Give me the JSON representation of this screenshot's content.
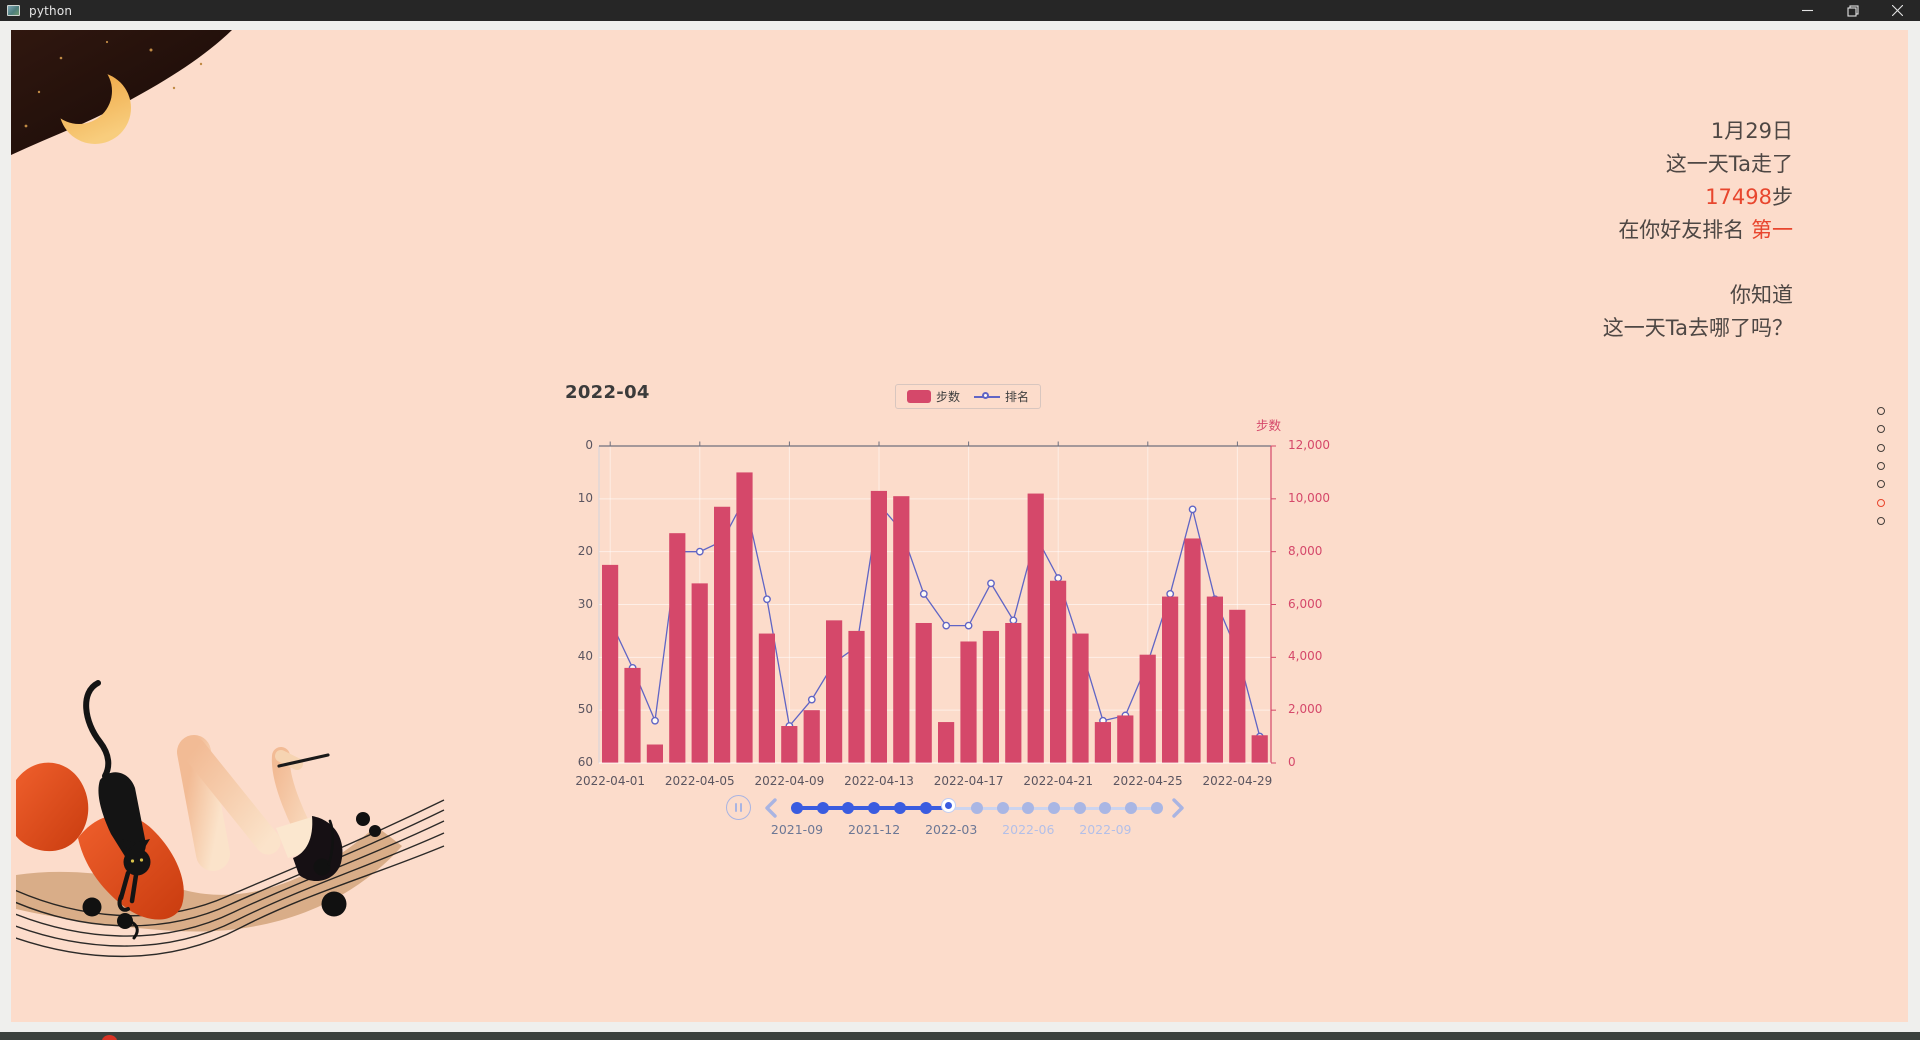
{
  "window": {
    "title": "python"
  },
  "story": {
    "accent_color": "#e8462e",
    "lines": [
      {
        "parts": [
          {
            "text": "1月29日"
          }
        ]
      },
      {
        "parts": [
          {
            "text": "这一天Ta走了"
          }
        ]
      },
      {
        "parts": [
          {
            "text": "17498",
            "accent": true
          },
          {
            "text": "步"
          }
        ]
      },
      {
        "parts": [
          {
            "text": "在你好友排名 "
          },
          {
            "text": "第一",
            "accent": true
          }
        ]
      },
      {
        "gap": true
      },
      {
        "parts": [
          {
            "text": "你知道"
          }
        ]
      },
      {
        "parts": [
          {
            "text": "这一天Ta去哪了吗？"
          }
        ]
      }
    ]
  },
  "chart_data": {
    "type": "bar",
    "title": "2022-04",
    "legend": [
      {
        "label": "步数",
        "type": "bar",
        "color": "#d5486a"
      },
      {
        "label": "排名",
        "type": "line",
        "color": "#6065c5"
      }
    ],
    "x": [
      "2022-04-01",
      "2022-04-02",
      "2022-04-03",
      "2022-04-04",
      "2022-04-05",
      "2022-04-06",
      "2022-04-07",
      "2022-04-08",
      "2022-04-09",
      "2022-04-10",
      "2022-04-11",
      "2022-04-12",
      "2022-04-13",
      "2022-04-14",
      "2022-04-15",
      "2022-04-16",
      "2022-04-17",
      "2022-04-18",
      "2022-04-19",
      "2022-04-20",
      "2022-04-21",
      "2022-04-22",
      "2022-04-23",
      "2022-04-24",
      "2022-04-25",
      "2022-04-26",
      "2022-04-27",
      "2022-04-28",
      "2022-04-29",
      "2022-04-30"
    ],
    "x_tick_labels": [
      "2022-04-01",
      "2022-04-05",
      "2022-04-09",
      "2022-04-13",
      "2022-04-17",
      "2022-04-21",
      "2022-04-25",
      "2022-04-29"
    ],
    "series": [
      {
        "name": "步数",
        "type": "bar",
        "axis": "right",
        "values": [
          7500,
          3600,
          700,
          8700,
          6800,
          9700,
          11000,
          4900,
          1400,
          2000,
          5400,
          5000,
          10300,
          10100,
          5300,
          1550,
          4600,
          5000,
          5300,
          10200,
          6900,
          4900,
          1550,
          1800,
          4100,
          6300,
          8500,
          6300,
          5800,
          1050
        ]
      },
      {
        "name": "排名",
        "type": "line",
        "axis": "left",
        "values": [
          33,
          42,
          52,
          20,
          20,
          18,
          10,
          29,
          53,
          48,
          41,
          38,
          11,
          16,
          28,
          34,
          34,
          26,
          33,
          17,
          25,
          38,
          52,
          51,
          41,
          28,
          12,
          29,
          39,
          55
        ]
      }
    ],
    "left_axis": {
      "ticks": [
        "0",
        "10",
        "20",
        "30",
        "40",
        "50",
        "60"
      ],
      "min": 0,
      "max": 60,
      "inverted": true
    },
    "right_axis": {
      "name": "步数",
      "ticks": [
        "12,000",
        "10,000",
        "8,000",
        "6,000",
        "4,000",
        "2,000",
        "0"
      ],
      "min": 0,
      "max": 12000
    },
    "grid": true,
    "legend_position": "top-center"
  },
  "timeline": {
    "current_index": 6,
    "items": [
      {
        "label": "2021-09"
      },
      {},
      {},
      {
        "label": "2021-12"
      },
      {},
      {},
      {
        "label": "2022-03"
      },
      {},
      {},
      {
        "label": "2022-06"
      },
      {},
      {},
      {
        "label": "2022-09"
      },
      {},
      {}
    ]
  },
  "page_indicator": {
    "count": 7,
    "active_index": 5
  },
  "colors": {
    "canvas_bg": "#fcdccb",
    "bar": "#d5486a",
    "line": "#6065c5",
    "right_axis": "#d5486a",
    "timeline_active": "#3a5ce0",
    "timeline_inactive": "#a9b6e4",
    "timeline_label": "#6c7795",
    "timeline_label_faded": "#b3bfe8",
    "page_dot_active": "#e8452c"
  }
}
